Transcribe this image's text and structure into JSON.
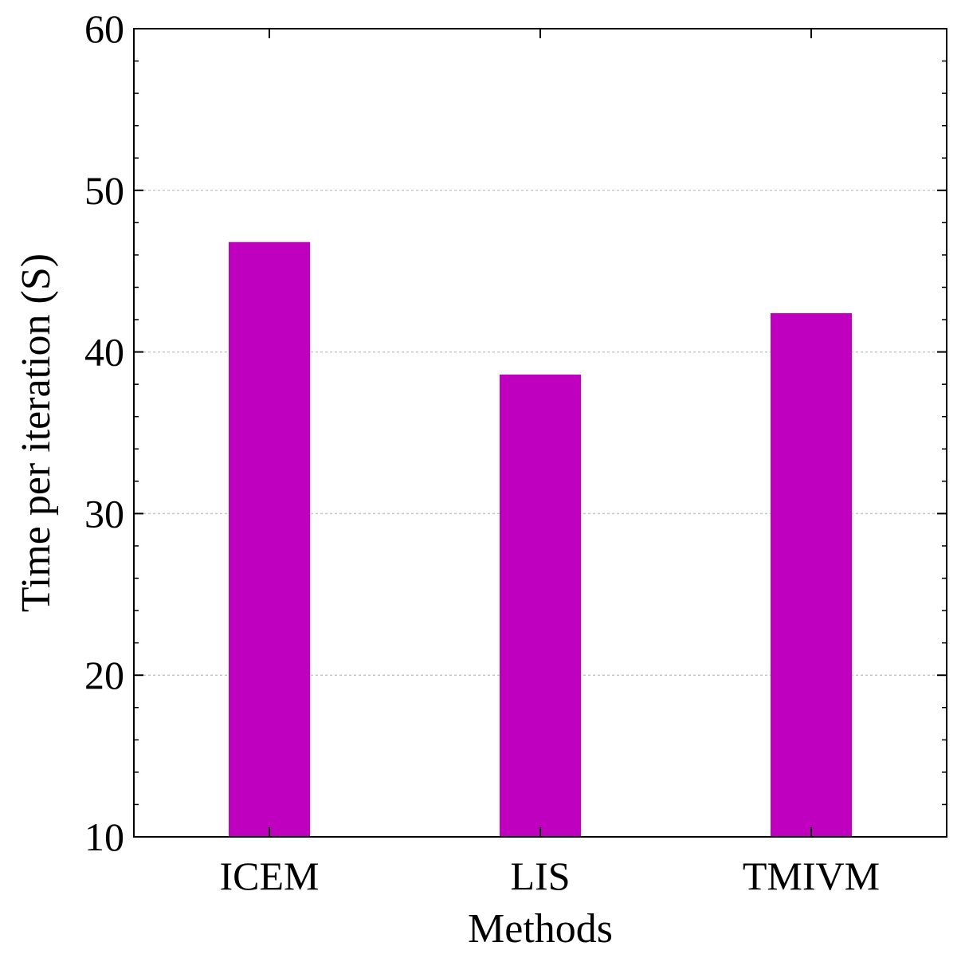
{
  "chart_data": {
    "type": "bar",
    "categories": [
      "ICEM",
      "LIS",
      "TMIVM"
    ],
    "values": [
      46.8,
      38.6,
      42.4
    ],
    "xlabel": "Methods",
    "ylabel": "Time per iteration (S)",
    "ylim": [
      10,
      60
    ],
    "yticks": [
      10,
      20,
      30,
      40,
      50,
      60
    ],
    "grid": true,
    "bar_color": "#bf00bf"
  }
}
